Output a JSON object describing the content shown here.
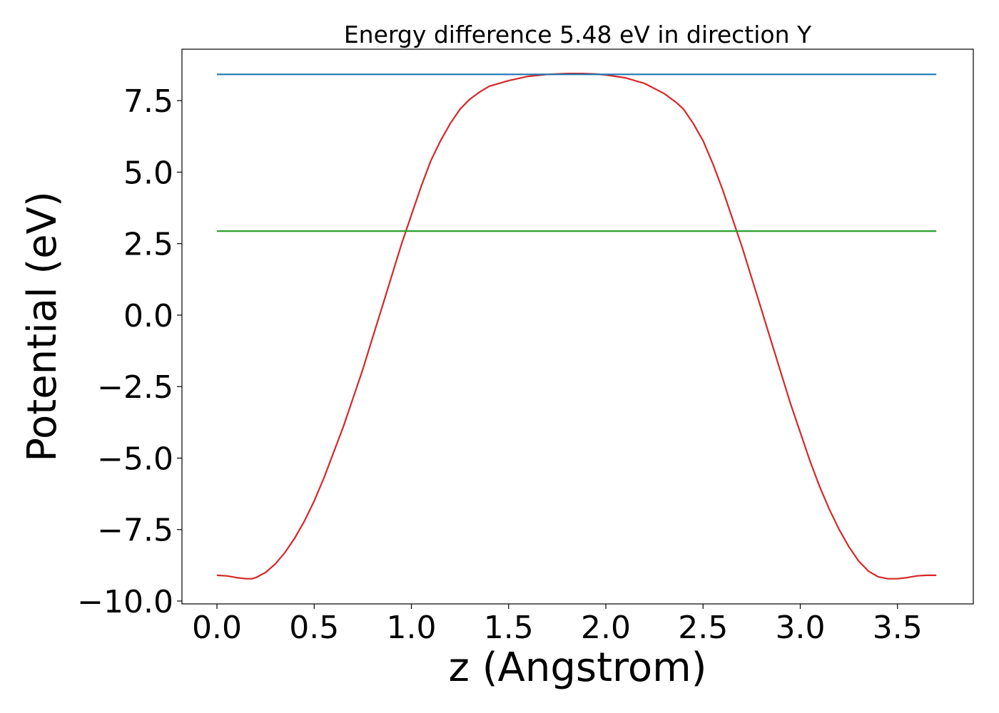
{
  "chart_data": {
    "type": "line",
    "title": "Energy difference 5.48 eV in direction Y",
    "xlabel": "z (Angstrom)",
    "ylabel": "Potential (eV)",
    "xlim": [
      -0.18,
      3.89
    ],
    "ylim": [
      -10.1,
      9.3
    ],
    "x_ticks": [
      0.0,
      0.5,
      1.0,
      1.5,
      2.0,
      2.5,
      3.0,
      3.5
    ],
    "x_tick_labels": [
      "0.0",
      "0.5",
      "1.0",
      "1.5",
      "2.0",
      "2.5",
      "3.0",
      "3.5"
    ],
    "y_ticks": [
      -10.0,
      -7.5,
      -5.0,
      -2.5,
      0.0,
      2.5,
      5.0,
      7.5
    ],
    "y_tick_labels": [
      "−10.0",
      "−7.5",
      "−5.0",
      "−2.5",
      "0.0",
      "2.5",
      "5.0",
      "7.5"
    ],
    "grid": false,
    "legend": false,
    "series": [
      {
        "color": "#d62728",
        "x": [
          0.0,
          0.05,
          0.1,
          0.15,
          0.18,
          0.2,
          0.25,
          0.3,
          0.35,
          0.4,
          0.45,
          0.5,
          0.55,
          0.6,
          0.65,
          0.7,
          0.75,
          0.8,
          0.85,
          0.9,
          0.95,
          1.0,
          1.05,
          1.1,
          1.15,
          1.2,
          1.25,
          1.3,
          1.35,
          1.4,
          1.5,
          1.6,
          1.7,
          1.8,
          1.88,
          1.95,
          2.0,
          2.1,
          2.2,
          2.3,
          2.36,
          2.4,
          2.45,
          2.5,
          2.55,
          2.6,
          2.65,
          2.7,
          2.75,
          2.8,
          2.85,
          2.9,
          2.95,
          3.0,
          3.05,
          3.1,
          3.15,
          3.2,
          3.25,
          3.3,
          3.35,
          3.4,
          3.45,
          3.5,
          3.55,
          3.6,
          3.65,
          3.7
        ],
        "values": [
          -9.1,
          -9.12,
          -9.18,
          -9.22,
          -9.22,
          -9.18,
          -9.0,
          -8.7,
          -8.3,
          -7.8,
          -7.2,
          -6.5,
          -5.7,
          -4.8,
          -3.9,
          -2.9,
          -1.9,
          -0.8,
          0.3,
          1.4,
          2.5,
          3.5,
          4.5,
          5.4,
          6.1,
          6.7,
          7.2,
          7.55,
          7.8,
          8.0,
          8.2,
          8.35,
          8.42,
          8.45,
          8.45,
          8.43,
          8.4,
          8.3,
          8.1,
          7.75,
          7.45,
          7.2,
          6.7,
          6.1,
          5.3,
          4.4,
          3.4,
          2.4,
          1.3,
          0.2,
          -0.9,
          -2.0,
          -3.1,
          -4.1,
          -5.1,
          -6.0,
          -6.8,
          -7.5,
          -8.1,
          -8.6,
          -8.95,
          -9.15,
          -9.22,
          -9.22,
          -9.18,
          -9.12,
          -9.1,
          -9.1
        ]
      },
      {
        "color": "#1f77b4",
        "x": [
          0.0,
          3.7
        ],
        "values": [
          8.42,
          8.42
        ]
      },
      {
        "color": "#2ca02c",
        "x": [
          0.0,
          3.7
        ],
        "values": [
          2.94,
          2.94
        ]
      }
    ]
  }
}
